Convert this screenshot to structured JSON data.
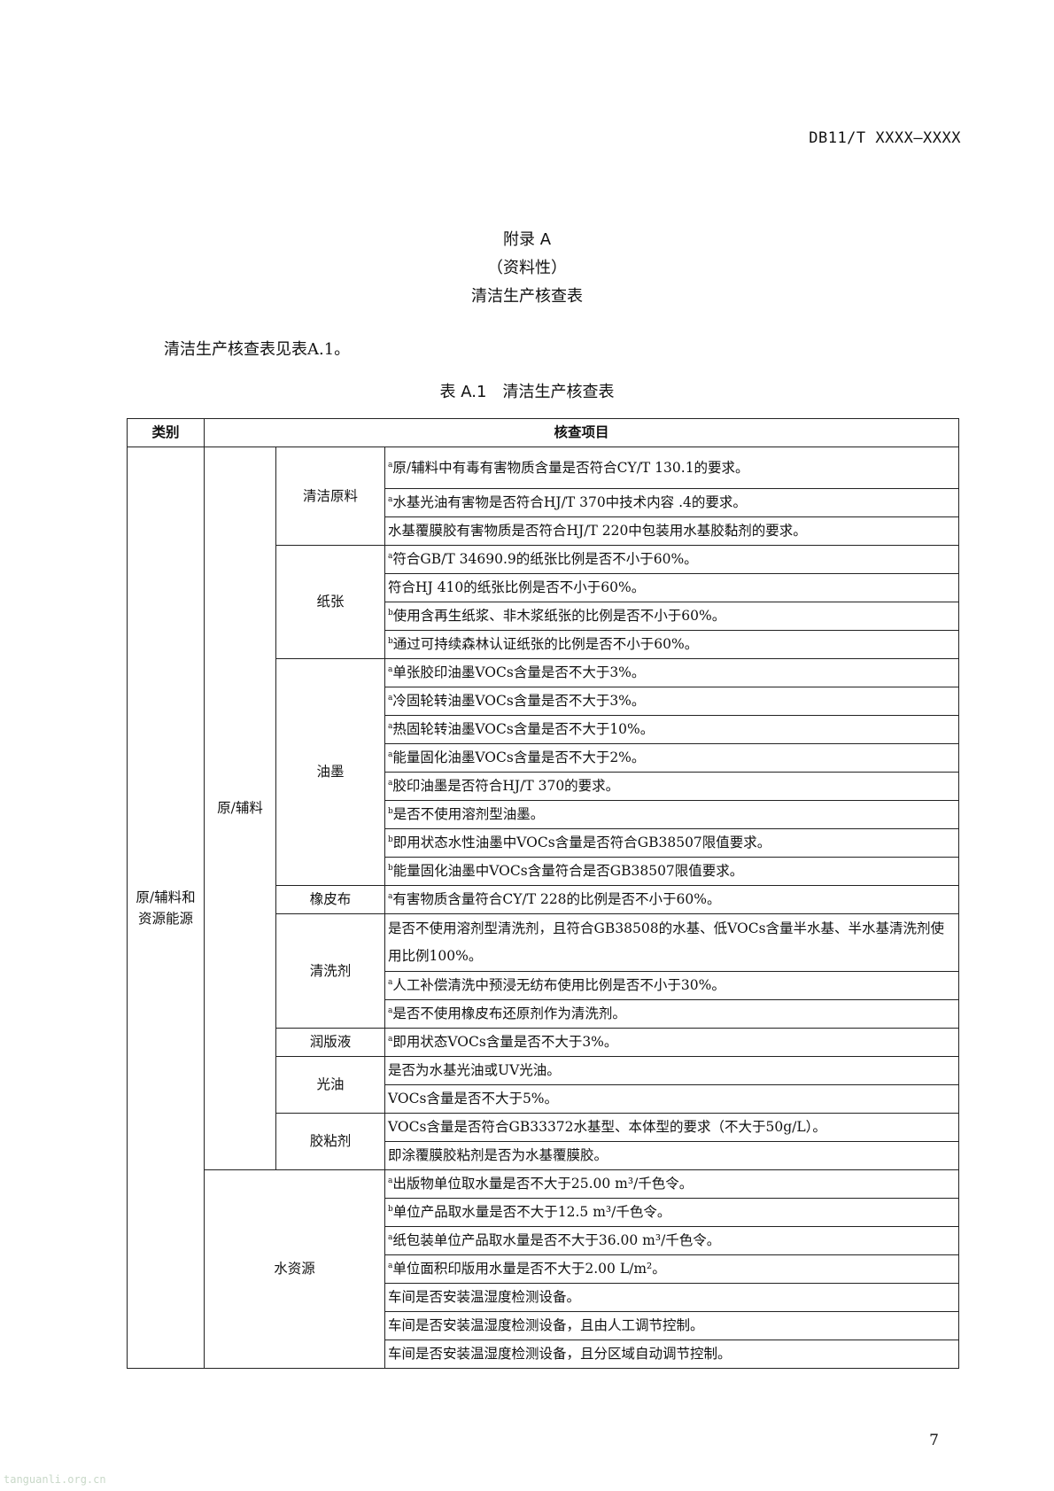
{
  "doc_code": "DB11/T XXXX—XXXX",
  "appendix": {
    "title": "附录 A",
    "type": "（资料性）",
    "name": "清洁生产核查表"
  },
  "intro": "清洁生产核查表见表A.1。",
  "caption": "表 A.1　清洁生产核查表",
  "table": {
    "headers": [
      "类别",
      "核查项目"
    ],
    "category": "原/辅料和资源能源",
    "group1": "原/辅料",
    "sections": [
      {
        "name": "清洁原料",
        "items": [
          {
            "sup": "a",
            "text": "原/辅料中有毒有害物质含量是否符合CY/T 130.1的要求。"
          },
          {
            "sup": "a",
            "text": "水基光油有害物是否符合HJ/T 370中技术内容 .4的要求。"
          },
          {
            "sup": "",
            "text": "水基覆膜胶有害物质是否符合HJ/T 220中包装用水基胶黏剂的要求。"
          }
        ]
      },
      {
        "name": "纸张",
        "items": [
          {
            "sup": "a",
            "text": "符合GB/T 34690.9的纸张比例是否不小于60%。"
          },
          {
            "sup": "",
            "text": "符合HJ 410的纸张比例是否不小于60%。"
          },
          {
            "sup": "b",
            "text": "使用含再生纸浆、非木浆纸张的比例是否不小于60%。"
          },
          {
            "sup": "b",
            "text": "通过可持续森林认证纸张的比例是否不小于60%。"
          }
        ]
      },
      {
        "name": "油墨",
        "items": [
          {
            "sup": "a",
            "text": "单张胶印油墨VOCs含量是否不大于3%。"
          },
          {
            "sup": "a",
            "text": "冷固轮转油墨VOCs含量是否不大于3%。"
          },
          {
            "sup": "a",
            "text": "热固轮转油墨VOCs含量是否不大于10%。"
          },
          {
            "sup": "a",
            "text": "能量固化油墨VOCs含量是否不大于2%。"
          },
          {
            "sup": "a",
            "text": "胶印油墨是否符合HJ/T 370的要求。"
          },
          {
            "sup": "b",
            "text": "是否不使用溶剂型油墨。"
          },
          {
            "sup": "b",
            "text": "即用状态水性油墨中VOCs含量是否符合GB38507限值要求。"
          },
          {
            "sup": "b",
            "text": "能量固化油墨中VOCs含量符合是否GB38507限值要求。"
          }
        ]
      },
      {
        "name": "橡皮布",
        "items": [
          {
            "sup": "a",
            "text": "有害物质含量符合CY/T 228的比例是否不小于60%。"
          }
        ]
      },
      {
        "name": "清洗剂",
        "items": [
          {
            "sup": "",
            "text": "是否不使用溶剂型清洗剂，且符合GB38508的水基、低VOCs含量半水基、半水基清洗剂使用比例100%。"
          },
          {
            "sup": "a",
            "text": "人工补偿清洗中预浸无纺布使用比例是否不小于30%。"
          },
          {
            "sup": "a",
            "text": "是否不使用橡皮布还原剂作为清洗剂。"
          }
        ]
      },
      {
        "name": "润版液",
        "items": [
          {
            "sup": "a",
            "text": "即用状态VOCs含量是否不大于3%。"
          }
        ]
      },
      {
        "name": "光油",
        "items": [
          {
            "sup": "",
            "text": "是否为水基光油或UV光油。"
          },
          {
            "sup": "",
            "text": "VOCs含量是否不大于5%。"
          }
        ]
      },
      {
        "name": "胶粘剂",
        "items": [
          {
            "sup": "",
            "text": "VOCs含量是否符合GB33372水基型、本体型的要求（不大于50g/L）。"
          },
          {
            "sup": "",
            "text": "即涂覆膜胶粘剂是否为水基覆膜胶。"
          }
        ]
      }
    ],
    "water": {
      "name": "水资源",
      "items": [
        {
          "sup": "a",
          "text": "出版物单位取水量是否不大于25.00 m³/千色令。"
        },
        {
          "sup": "b",
          "text": "单位产品取水量是否不大于12.5 m³/千色令。"
        },
        {
          "sup": "a",
          "text": "纸包装单位产品取水量是否不大于36.00 m³/千色令。"
        },
        {
          "sup": "a",
          "text": "单位面积印版用水量是否不大于2.00 L/m²。"
        },
        {
          "sup": "",
          "text": "车间是否安装温湿度检测设备。"
        },
        {
          "sup": "",
          "text": "车间是否安装温湿度检测设备，且由人工调节控制。"
        },
        {
          "sup": "",
          "text": "车间是否安装温湿度检测设备，且分区域自动调节控制。"
        }
      ]
    }
  },
  "page_number": "7",
  "watermark": "tanguanli.org.cn"
}
